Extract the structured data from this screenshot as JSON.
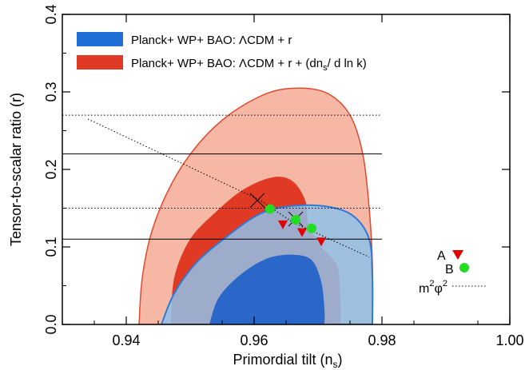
{
  "chart_data": {
    "type": "contour",
    "xlabel": "Primordial tilt (n",
    "xlabel_sub": "s",
    "xlabel_end": ")",
    "ylabel": "Tensor-to-scalar ratio (r)",
    "xlim": [
      0.93,
      1.0
    ],
    "ylim": [
      0.0,
      0.4
    ],
    "x_ticks": [
      "0.94",
      "0.96",
      "0.98",
      "1.00"
    ],
    "y_ticks": [
      "0.0",
      "0.1",
      "0.2",
      "0.3",
      "0.4"
    ],
    "legend": [
      {
        "label": "Planck+ WP+ BAO: ΛCDM + r",
        "color": "#1f6fd6"
      },
      {
        "label": "Planck+ WP+ BAO: ΛCDM + r + (dn",
        "label_sub": "s",
        "label_end": "/ d ln k)",
        "color": "#e03a24"
      }
    ],
    "colors": {
      "red_outer_fill": "#f6b7a5",
      "red_outer_line": "#e04a30",
      "red_inner_fill": "#e03a24",
      "blue_outer_fill": "#8fc1e8",
      "blue_outer_line": "#2e7ad6",
      "blue_inner_fill": "#1f5fc8",
      "marker_A": "#e00000",
      "marker_B": "#22dd22"
    },
    "contours": {
      "red_outer": [
        [
          0.942,
          0.0
        ],
        [
          0.9425,
          0.06
        ],
        [
          0.944,
          0.12
        ],
        [
          0.947,
          0.18
        ],
        [
          0.951,
          0.23
        ],
        [
          0.956,
          0.27
        ],
        [
          0.962,
          0.298
        ],
        [
          0.967,
          0.305
        ],
        [
          0.9715,
          0.298
        ],
        [
          0.975,
          0.27
        ],
        [
          0.977,
          0.22
        ],
        [
          0.978,
          0.15
        ],
        [
          0.9785,
          0.08
        ],
        [
          0.9785,
          0.0
        ]
      ],
      "red_inner": [
        [
          0.947,
          0.0
        ],
        [
          0.9475,
          0.06
        ],
        [
          0.95,
          0.11
        ],
        [
          0.954,
          0.145
        ],
        [
          0.9585,
          0.175
        ],
        [
          0.963,
          0.19
        ],
        [
          0.966,
          0.185
        ],
        [
          0.968,
          0.16
        ],
        [
          0.9685,
          0.13
        ],
        [
          0.9705,
          0.1
        ],
        [
          0.973,
          0.075
        ],
        [
          0.9735,
          0.03
        ],
        [
          0.9735,
          0.0
        ]
      ],
      "blue_outer": [
        [
          0.9455,
          0.0
        ],
        [
          0.9475,
          0.04
        ],
        [
          0.951,
          0.08
        ],
        [
          0.956,
          0.115
        ],
        [
          0.961,
          0.143
        ],
        [
          0.966,
          0.153
        ],
        [
          0.9715,
          0.152
        ],
        [
          0.9755,
          0.14
        ],
        [
          0.978,
          0.11
        ],
        [
          0.9785,
          0.06
        ],
        [
          0.9785,
          0.0
        ]
      ],
      "blue_inner": [
        [
          0.953,
          0.0
        ],
        [
          0.9545,
          0.035
        ],
        [
          0.958,
          0.065
        ],
        [
          0.962,
          0.085
        ],
        [
          0.966,
          0.09
        ],
        [
          0.969,
          0.083
        ],
        [
          0.9705,
          0.055
        ],
        [
          0.971,
          0.02
        ],
        [
          0.971,
          0.0
        ]
      ]
    },
    "horizontal_lines": [
      {
        "y": 0.22,
        "style": "solid"
      },
      {
        "y": 0.11,
        "style": "solid"
      },
      {
        "y": 0.27,
        "style": "dotted"
      },
      {
        "y": 0.15,
        "style": "dotted"
      }
    ],
    "m2phi2_line": [
      [
        0.934,
        0.265
      ],
      [
        0.961,
        0.16
      ],
      [
        0.966,
        0.132
      ],
      [
        0.978,
        0.087
      ]
    ],
    "cross_markers": [
      [
        0.9605,
        0.16
      ],
      [
        0.9665,
        0.136
      ]
    ],
    "points_A": [
      [
        0.9645,
        0.129
      ],
      [
        0.9675,
        0.119
      ],
      [
        0.9705,
        0.107
      ]
    ],
    "points_B": [
      [
        0.9625,
        0.149
      ],
      [
        0.9665,
        0.135
      ],
      [
        0.969,
        0.124
      ]
    ],
    "marker_legend": [
      {
        "label": "A",
        "marker": "triangle-down"
      },
      {
        "label": "B",
        "marker": "circle"
      },
      {
        "label": "m",
        "superscript_1": "2",
        "label_mid": "φ",
        "superscript_2": "2",
        "marker": "dotted-line"
      }
    ]
  }
}
